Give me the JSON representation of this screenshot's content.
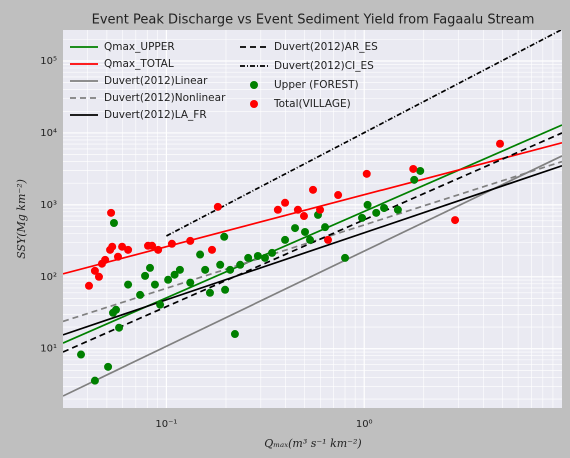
{
  "chart_data": {
    "type": "scatter",
    "title": "Event Peak Discharge vs Event Sediment Yield from Fagaalu Stream",
    "x_label": "Qₘₐₓ(m³ s⁻¹ km⁻²)",
    "y_label": "SSY(Mg km⁻²)",
    "log_x": true,
    "log_y": true,
    "grid": true,
    "xlim": [
      0.03,
      10
    ],
    "ylim": [
      1.5,
      270000
    ],
    "xticks": [
      {
        "value": 0.1,
        "label": "10⁻¹"
      },
      {
        "value": 1,
        "label": "10⁰"
      }
    ],
    "yticks": [
      {
        "value": 10,
        "label": "10¹"
      },
      {
        "value": 100,
        "label": "10²"
      },
      {
        "value": 1000,
        "label": "10³"
      },
      {
        "value": 10000,
        "label": "10⁴"
      },
      {
        "value": 100000,
        "label": "10⁵"
      }
    ],
    "xminorticks": [
      0.04,
      0.05,
      0.06,
      0.07,
      0.08,
      0.09,
      0.2,
      0.3,
      0.4,
      0.5,
      0.6,
      0.7,
      0.8,
      0.9,
      2,
      3,
      4,
      5,
      6,
      7,
      8,
      9
    ],
    "yminorticks": [
      2,
      3,
      4,
      5,
      6,
      7,
      8,
      9,
      20,
      30,
      40,
      50,
      60,
      70,
      80,
      90,
      200,
      300,
      400,
      500,
      600,
      700,
      800,
      900,
      2000,
      3000,
      4000,
      5000,
      6000,
      7000,
      8000,
      9000,
      20000,
      30000,
      40000,
      50000,
      60000,
      70000,
      80000,
      90000,
      200000
    ],
    "series": [
      {
        "name": "Qmax_UPPER",
        "type": "line",
        "style": "solid",
        "color": "#008000",
        "x": [
          0.03,
          10
        ],
        "values": [
          12,
          12900
        ]
      },
      {
        "name": "Qmax_TOTAL",
        "type": "line",
        "style": "solid",
        "color": "#ff0000",
        "x": [
          0.03,
          10
        ],
        "values": [
          110,
          7300
        ]
      },
      {
        "name": "Duvert(2012)Linear",
        "type": "line",
        "style": "solid",
        "color": "#808080",
        "x": [
          0.03,
          10
        ],
        "values": [
          2.2,
          4800
        ]
      },
      {
        "name": "Duvert(2012)Nonlinear",
        "type": "line",
        "style": "dashed",
        "color": "#808080",
        "x": [
          0.03,
          10
        ],
        "values": [
          24,
          4000
        ]
      },
      {
        "name": "Duvert(2012)LA_FR",
        "type": "line",
        "style": "solid",
        "color": "#000000",
        "x": [
          0.03,
          10
        ],
        "values": [
          15.6,
          3500
        ]
      },
      {
        "name": "Duvert(2012)AR_ES",
        "type": "line",
        "style": "dashed",
        "color": "#000000",
        "x": [
          0.03,
          10
        ],
        "values": [
          9,
          10000
        ]
      },
      {
        "name": "Duvert(2012)CI_ES",
        "type": "line",
        "style": "dashdot",
        "color": "#000000",
        "x": [
          0.1,
          10
        ],
        "values": [
          370,
          275000
        ]
      },
      {
        "name": "Upper (FOREST)",
        "type": "scatter",
        "color": "#008000",
        "x": [
          0.037,
          0.0435,
          0.0507,
          0.0543,
          0.0576,
          0.0537,
          0.0556,
          0.064,
          0.0736,
          0.078,
          0.0826,
          0.0875,
          0.0929,
          0.102,
          0.11,
          0.117,
          0.132,
          0.148,
          0.157,
          0.166,
          0.187,
          0.198,
          0.196,
          0.21,
          0.222,
          0.236,
          0.259,
          0.29,
          0.315,
          0.342,
          0.398,
          0.447,
          0.502,
          0.532,
          0.584,
          0.634,
          0.8,
          0.975,
          1.04,
          1.15,
          1.26,
          1.48,
          1.79,
          1.92
        ],
        "values": [
          8.3,
          3.6,
          5.6,
          560,
          19.6,
          31.6,
          34.8,
          78,
          56,
          103,
          133,
          78,
          41,
          91,
          107,
          125,
          83,
          204,
          125,
          60,
          147,
          66,
          360,
          125,
          16,
          147,
          183,
          195,
          183,
          215,
          326,
          476,
          420,
          326,
          725,
          490,
          183,
          660,
          1000,
          775,
          905,
          855,
          2230,
          2960
        ]
      },
      {
        "name": "Total(VILLAGE)",
        "type": "scatter",
        "color": "#ff0000",
        "x": [
          0.0406,
          0.0435,
          0.0456,
          0.0472,
          0.049,
          0.0525,
          0.0519,
          0.0532,
          0.0569,
          0.0597,
          0.064,
          0.0807,
          0.0846,
          0.0908,
          0.1066,
          0.132,
          0.182,
          0.17,
          0.366,
          0.398,
          0.462,
          0.496,
          0.551,
          0.598,
          0.656,
          0.738,
          1.03,
          1.77,
          2.88,
          4.86
        ],
        "values": [
          75,
          121,
          100,
          152,
          172,
          775,
          237,
          262,
          190,
          262,
          237,
          270,
          270,
          237,
          288,
          316,
          940,
          237,
          855,
          1070,
          855,
          700,
          1620,
          855,
          326,
          1370,
          2700,
          3160,
          615,
          7080
        ]
      }
    ]
  }
}
